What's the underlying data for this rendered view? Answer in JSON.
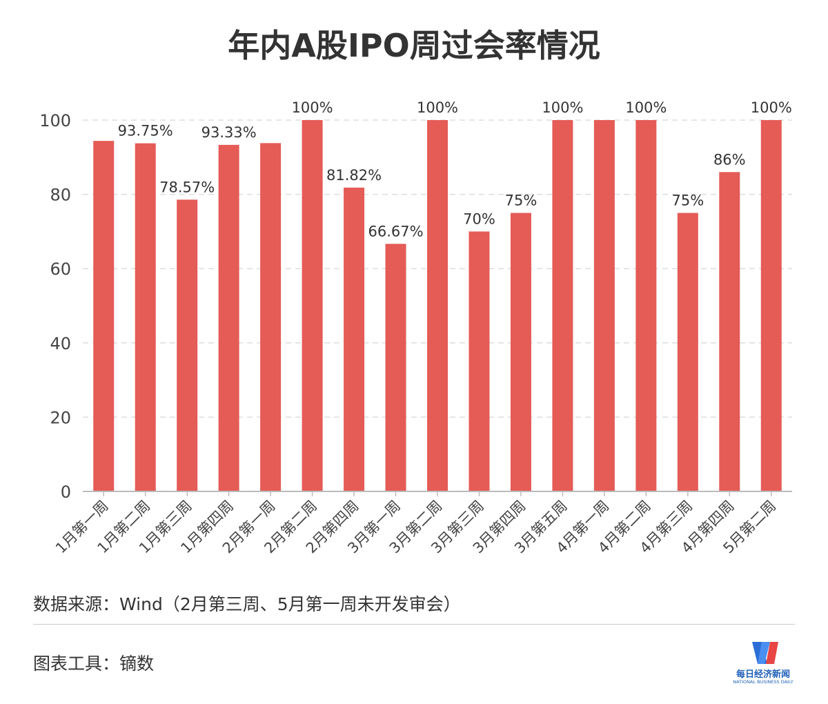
{
  "chart_data": {
    "type": "bar",
    "title": "年内A股IPO周过会率情况",
    "categories": [
      "1月第一周",
      "1月第二周",
      "1月第三周",
      "1月第四周",
      "2月第一周",
      "2月第二周",
      "2月第四周",
      "3月第一周",
      "3月第二周",
      "3月第三周",
      "3月第四周",
      "3月第五周",
      "4月第一周",
      "4月第二周",
      "4月第三周",
      "4月第四周",
      "5月第二周"
    ],
    "values": [
      94.4,
      93.75,
      78.57,
      93.33,
      93.8,
      100,
      81.82,
      66.67,
      100,
      70,
      75,
      100,
      100,
      100,
      75,
      86,
      100
    ],
    "data_labels": [
      "",
      "93.75%",
      "78.57%",
      "93.33%",
      "",
      "100%",
      "81.82%",
      "66.67%",
      "100%",
      "70%",
      "75%",
      "100%",
      "",
      "100%",
      "75%",
      "86%",
      "100%"
    ],
    "ylim": [
      0,
      100
    ],
    "yticks": [
      "0",
      "20",
      "40",
      "60",
      "80",
      "100"
    ],
    "grid": true,
    "bar_color": "#e55b56",
    "xlabel": "",
    "ylabel": ""
  },
  "footer": {
    "source": "数据来源：Wind（2月第三周、5月第一周未开发审会）",
    "tool": "图表工具：镝数"
  },
  "logo": {
    "name_cn": "每日经济新闻",
    "name_en": "NATIONAL BUSINESS DAILY"
  }
}
